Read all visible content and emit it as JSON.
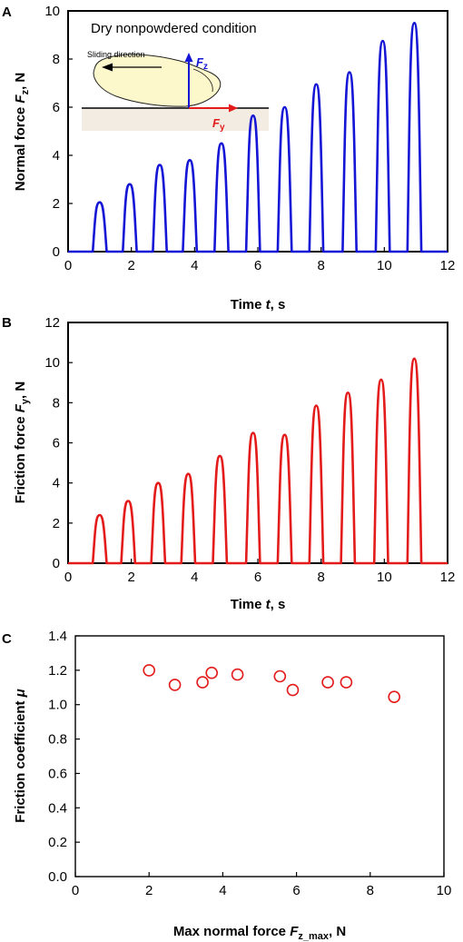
{
  "panels": {
    "A": {
      "letter": "A",
      "inset_title": "Dry nonpowdered condition",
      "inset_direction_label": "Sliding direction",
      "vector_z_symbol": "F",
      "vector_z_subscript": "z",
      "vector_y_symbol": "F",
      "vector_y_subscript": "y",
      "ylabel_prefix": "Normal force ",
      "ylabel_symbol": "F",
      "ylabel_subscript": "z",
      "ylabel_suffix": ", N",
      "xlabel_prefix": "Time ",
      "xlabel_symbol": "t",
      "xlabel_suffix": ", s"
    },
    "B": {
      "letter": "B",
      "ylabel_prefix": "Friction force ",
      "ylabel_symbol": "F",
      "ylabel_subscript": "y",
      "ylabel_suffix": ", N",
      "xlabel_prefix": "Time ",
      "xlabel_symbol": "t",
      "xlabel_suffix": ", s"
    },
    "C": {
      "letter": "C",
      "ylabel_prefix": "Friction coefficient ",
      "ylabel_symbol": "μ",
      "xlabel_prefix": "Max normal force ",
      "xlabel_symbol": "F",
      "xlabel_subscript": "z_max",
      "xlabel_suffix": ", N"
    }
  },
  "colors": {
    "normal": "#1515d6",
    "friction": "#e31b1b",
    "axis": "#000000"
  },
  "chart_data": [
    {
      "type": "line",
      "panel": "A",
      "series": [
        {
          "color": "#1515d6",
          "peaks": [
            {
              "t": 1.0,
              "value": 2.05
            },
            {
              "t": 1.95,
              "value": 2.8
            },
            {
              "t": 2.9,
              "value": 3.6
            },
            {
              "t": 3.85,
              "value": 3.8
            },
            {
              "t": 4.85,
              "value": 4.5
            },
            {
              "t": 5.85,
              "value": 5.65
            },
            {
              "t": 6.85,
              "value": 6.0
            },
            {
              "t": 7.85,
              "value": 6.95
            },
            {
              "t": 8.9,
              "value": 7.45
            },
            {
              "t": 9.95,
              "value": 8.75
            },
            {
              "t": 10.95,
              "value": 9.5
            }
          ]
        }
      ],
      "xlim": [
        0,
        12
      ],
      "ylim": [
        0,
        10
      ],
      "xticks": [
        0,
        2,
        4,
        6,
        8,
        10,
        12
      ],
      "yticks": [
        0,
        2,
        4,
        6,
        8,
        10
      ]
    },
    {
      "type": "line",
      "panel": "B",
      "series": [
        {
          "color": "#e31b1b",
          "peaks": [
            {
              "t": 1.0,
              "value": 2.4
            },
            {
              "t": 1.9,
              "value": 3.1
            },
            {
              "t": 2.85,
              "value": 4.0
            },
            {
              "t": 3.8,
              "value": 4.45
            },
            {
              "t": 4.8,
              "value": 5.35
            },
            {
              "t": 5.85,
              "value": 6.5
            },
            {
              "t": 6.85,
              "value": 6.4
            },
            {
              "t": 7.85,
              "value": 7.85
            },
            {
              "t": 8.85,
              "value": 8.5
            },
            {
              "t": 9.9,
              "value": 9.15
            },
            {
              "t": 10.95,
              "value": 10.2
            }
          ]
        }
      ],
      "xlim": [
        0,
        12
      ],
      "ylim": [
        0,
        12
      ],
      "xticks": [
        0,
        2,
        4,
        6,
        8,
        10,
        12
      ],
      "yticks": [
        0,
        2,
        4,
        6,
        8,
        10,
        12
      ]
    },
    {
      "type": "scatter",
      "panel": "C",
      "series": [
        {
          "color": "#e31b1b",
          "x": [
            2.0,
            2.7,
            3.45,
            3.7,
            4.4,
            5.55,
            5.9,
            6.85,
            7.35,
            8.65
          ],
          "y": [
            1.2,
            1.115,
            1.13,
            1.185,
            1.175,
            1.165,
            1.085,
            1.13,
            1.13,
            1.045
          ]
        }
      ],
      "xlim": [
        0,
        10
      ],
      "ylim": [
        0,
        1.4
      ],
      "xticks": [
        0,
        2,
        4,
        6,
        8,
        10
      ],
      "yticks": [
        "0.0",
        "0.2",
        "0.4",
        "0.6",
        "0.8",
        "1.0",
        "1.2",
        "1.4"
      ]
    }
  ]
}
